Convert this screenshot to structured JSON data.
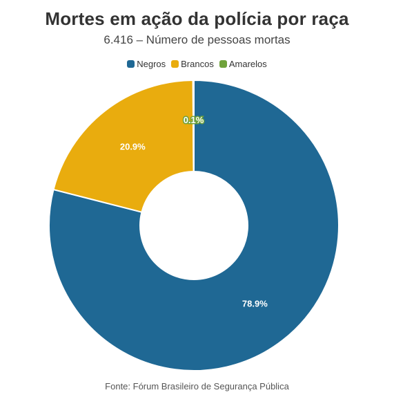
{
  "chart_data": {
    "type": "pie",
    "title": "Mortes em ação da polícia por raça",
    "subtitle": "6.416 – Número de pessoas mortas",
    "categories": [
      "Negros",
      "Brancos",
      "Amarelos"
    ],
    "values": [
      78.9,
      20.9,
      0.1
    ],
    "data_labels": [
      "78.9%",
      "20.9%",
      "0.1%"
    ],
    "colors": [
      "#1f6894",
      "#e9ac0e",
      "#6fa23b"
    ],
    "legend_position": "top",
    "donut": true,
    "source": "Fonte: Fórum Brasileiro de Segurança Pública"
  }
}
